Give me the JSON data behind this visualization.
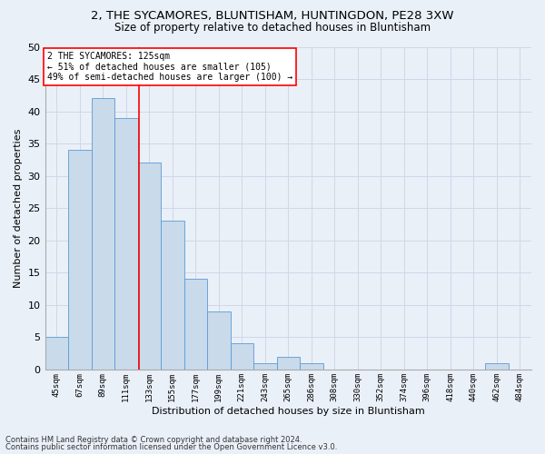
{
  "title": "2, THE SYCAMORES, BLUNTISHAM, HUNTINGDON, PE28 3XW",
  "subtitle": "Size of property relative to detached houses in Bluntisham",
  "xlabel": "Distribution of detached houses by size in Bluntisham",
  "ylabel": "Number of detached properties",
  "bar_labels": [
    "45sqm",
    "67sqm",
    "89sqm",
    "111sqm",
    "133sqm",
    "155sqm",
    "177sqm",
    "199sqm",
    "221sqm",
    "243sqm",
    "265sqm",
    "286sqm",
    "308sqm",
    "330sqm",
    "352sqm",
    "374sqm",
    "396sqm",
    "418sqm",
    "440sqm",
    "462sqm",
    "484sqm"
  ],
  "bar_values": [
    5,
    34,
    42,
    39,
    32,
    23,
    14,
    9,
    4,
    1,
    2,
    1,
    0,
    0,
    0,
    0,
    0,
    0,
    0,
    1,
    0
  ],
  "bar_color": "#c9daea",
  "bar_edge_color": "#5b9bd5",
  "grid_color": "#d0d8e8",
  "bg_color": "#eaf0f8",
  "annotation_text": "2 THE SYCAMORES: 125sqm\n← 51% of detached houses are smaller (105)\n49% of semi-detached houses are larger (100) →",
  "annotation_box_color": "white",
  "annotation_box_edge_color": "red",
  "vline_x_index": 3.55,
  "vline_color": "red",
  "ylim": [
    0,
    50
  ],
  "yticks": [
    0,
    5,
    10,
    15,
    20,
    25,
    30,
    35,
    40,
    45,
    50
  ],
  "footer1": "Contains HM Land Registry data © Crown copyright and database right 2024.",
  "footer2": "Contains public sector information licensed under the Open Government Licence v3.0."
}
